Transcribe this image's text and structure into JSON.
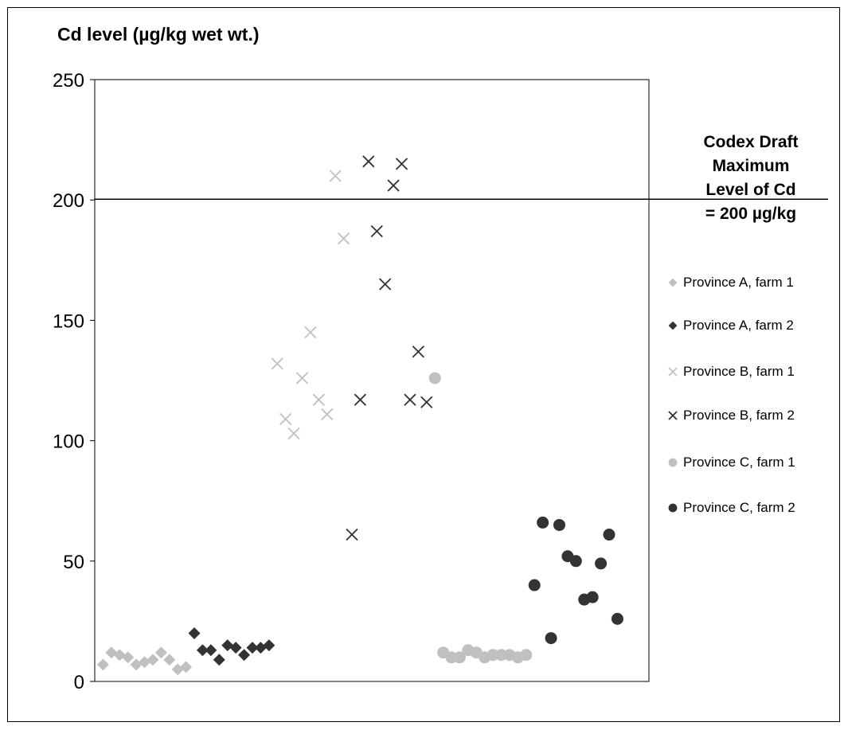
{
  "chart_data": {
    "type": "scatter",
    "title": "",
    "ylabel": "Cd level (µg/kg wet wt.)",
    "xlabel": "",
    "ylim": [
      0,
      250
    ],
    "yticks": [
      0,
      50,
      100,
      150,
      200,
      250
    ],
    "reference_line": {
      "value": 200
    },
    "legend_title_lines": [
      "Codex Draft",
      "Maximum",
      "Level of Cd",
      "= 200 µg/kg"
    ],
    "legend_position": "right",
    "series": [
      {
        "name": "Province A, farm 1",
        "marker": "diamond",
        "color": "#c0c0c0",
        "x": [
          1,
          2,
          3,
          4,
          5,
          6,
          7,
          8,
          9,
          10,
          11
        ],
        "y": [
          7,
          12,
          11,
          10,
          7,
          8,
          9,
          12,
          9,
          5,
          6
        ]
      },
      {
        "name": "Province A, farm 2",
        "marker": "diamond",
        "color": "#333333",
        "x": [
          12,
          13,
          14,
          15,
          16,
          17,
          18,
          19,
          20,
          21
        ],
        "y": [
          20,
          13,
          13,
          9,
          15,
          14,
          11,
          14,
          14,
          15
        ]
      },
      {
        "name": "Province B, farm 1",
        "marker": "x",
        "color": "#c0c0c0",
        "x": [
          22,
          23,
          24,
          25,
          26,
          27,
          28,
          29,
          30
        ],
        "y": [
          132,
          109,
          103,
          126,
          145,
          117,
          111,
          210,
          184
        ]
      },
      {
        "name": "Province B, farm 2",
        "marker": "x",
        "color": "#333333",
        "x": [
          31,
          32,
          33,
          34,
          35,
          36,
          37,
          38,
          39,
          40
        ],
        "y": [
          61,
          117,
          216,
          187,
          165,
          206,
          215,
          117,
          137,
          116
        ]
      },
      {
        "name": "Province C, farm 1",
        "marker": "circle",
        "color": "#c0c0c0",
        "x": [
          41,
          42,
          43,
          44,
          45,
          46,
          47,
          48,
          49,
          50,
          51,
          52
        ],
        "y": [
          126,
          12,
          10,
          10,
          13,
          12,
          10,
          11,
          11,
          11,
          10,
          11
        ]
      },
      {
        "name": "Province C, farm 2",
        "marker": "circle",
        "color": "#333333",
        "x": [
          53,
          54,
          55,
          56,
          57,
          58,
          59,
          60,
          61,
          62,
          63
        ],
        "y": [
          40,
          66,
          18,
          65,
          52,
          50,
          34,
          35,
          49,
          61,
          26
        ]
      }
    ]
  }
}
